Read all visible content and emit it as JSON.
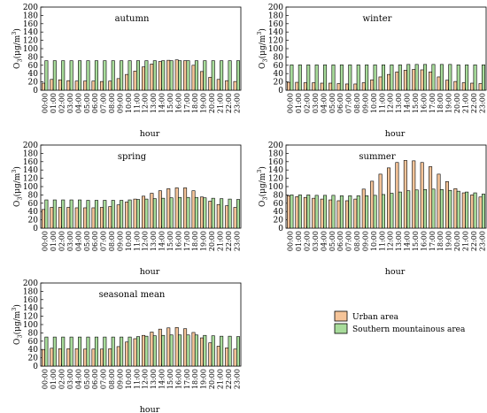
{
  "hours": [
    "00:00",
    "01:00",
    "02:00",
    "03:00",
    "04:00",
    "05:00",
    "06:00",
    "07:00",
    "08:00",
    "09:00",
    "10:00",
    "11:00",
    "12:00",
    "13:00",
    "14:00",
    "15:00",
    "16:00",
    "17:00",
    "18:00",
    "19:00",
    "20:00",
    "21:00",
    "22:00",
    "23:00"
  ],
  "ylabel_main": "O",
  "ylabel_sub": "3",
  "ylabel_unit_a": "(μg/m",
  "ylabel_unit_sup": "3",
  "ylabel_unit_b": ")",
  "xlabel": "hour",
  "legend": {
    "urban": "Urban area",
    "mountain": "Southern mountainous area"
  },
  "colors": {
    "urban": "#f5c499",
    "mountain": "#a8dc9b",
    "edge": "#000000"
  },
  "chart_data": [
    {
      "type": "bar",
      "title": "autumn",
      "categories": [
        "00:00",
        "01:00",
        "02:00",
        "03:00",
        "04:00",
        "05:00",
        "06:00",
        "07:00",
        "08:00",
        "09:00",
        "10:00",
        "11:00",
        "12:00",
        "13:00",
        "14:00",
        "15:00",
        "16:00",
        "17:00",
        "18:00",
        "19:00",
        "20:00",
        "21:00",
        "22:00",
        "23:00"
      ],
      "ylim": [
        0,
        200
      ],
      "yticks": [
        0,
        20,
        40,
        60,
        80,
        100,
        120,
        140,
        160,
        180,
        200
      ],
      "series": [
        {
          "name": "Urban area",
          "values": [
            17,
            26,
            25,
            23,
            22,
            22,
            22,
            21,
            22,
            28,
            38,
            46,
            56,
            63,
            69,
            72,
            73,
            71,
            60,
            45,
            31,
            26,
            23,
            21
          ]
        },
        {
          "name": "Southern mountainous area",
          "values": [
            71,
            71,
            71,
            71,
            71,
            71,
            71,
            71,
            71,
            71,
            71,
            71,
            71,
            71,
            71,
            71,
            71,
            71,
            71,
            71,
            71,
            71,
            71,
            71
          ]
        }
      ]
    },
    {
      "type": "bar",
      "title": "winter",
      "categories": [
        "00:00",
        "01:00",
        "02:00",
        "03:00",
        "04:00",
        "05:00",
        "06:00",
        "07:00",
        "08:00",
        "09:00",
        "10:00",
        "11:00",
        "12:00",
        "13:00",
        "14:00",
        "15:00",
        "16:00",
        "17:00",
        "18:00",
        "19:00",
        "20:00",
        "21:00",
        "22:00",
        "23:00"
      ],
      "ylim": [
        0,
        200
      ],
      "yticks": [
        0,
        20,
        40,
        60,
        80,
        100,
        120,
        140,
        160,
        180,
        200
      ],
      "series": [
        {
          "name": "Urban area",
          "values": [
            19,
            19,
            18,
            18,
            17,
            17,
            16,
            15,
            15,
            18,
            25,
            32,
            38,
            44,
            48,
            50,
            49,
            44,
            32,
            24,
            21,
            18,
            17,
            16
          ]
        },
        {
          "name": "Southern mountainous area",
          "values": [
            61,
            61,
            61,
            61,
            61,
            61,
            61,
            61,
            61,
            61,
            61,
            61,
            61,
            61,
            62,
            62,
            62,
            62,
            62,
            62,
            61,
            61,
            61,
            61
          ]
        }
      ]
    },
    {
      "type": "bar",
      "title": "spring",
      "categories": [
        "00:00",
        "01:00",
        "02:00",
        "03:00",
        "04:00",
        "05:00",
        "06:00",
        "07:00",
        "08:00",
        "09:00",
        "10:00",
        "11:00",
        "12:00",
        "13:00",
        "14:00",
        "15:00",
        "16:00",
        "17:00",
        "18:00",
        "19:00",
        "20:00",
        "21:00",
        "22:00",
        "23:00"
      ],
      "ylim": [
        0,
        200
      ],
      "yticks": [
        0,
        20,
        40,
        60,
        80,
        100,
        120,
        140,
        160,
        180,
        200
      ],
      "series": [
        {
          "name": "Urban area",
          "values": [
            45,
            50,
            50,
            50,
            49,
            49,
            49,
            50,
            52,
            56,
            63,
            70,
            77,
            84,
            90,
            95,
            97,
            97,
            90,
            75,
            65,
            57,
            54,
            50
          ]
        },
        {
          "name": "Southern mountainous area",
          "values": [
            68,
            68,
            68,
            68,
            68,
            67,
            67,
            67,
            67,
            67,
            68,
            69,
            70,
            71,
            72,
            73,
            74,
            74,
            74,
            73,
            72,
            71,
            70,
            69
          ]
        }
      ]
    },
    {
      "type": "bar",
      "title": "summer",
      "categories": [
        "00:00",
        "01:00",
        "02:00",
        "03:00",
        "04:00",
        "05:00",
        "06:00",
        "07:00",
        "08:00",
        "09:00",
        "10:00",
        "11:00",
        "12:00",
        "13:00",
        "14:00",
        "15:00",
        "16:00",
        "17:00",
        "18:00",
        "19:00",
        "20:00",
        "21:00",
        "22:00",
        "23:00"
      ],
      "ylim": [
        0,
        200
      ],
      "yticks": [
        0,
        20,
        40,
        60,
        80,
        100,
        120,
        140,
        160,
        180,
        200
      ],
      "series": [
        {
          "name": "Urban area",
          "values": [
            78,
            76,
            74,
            72,
            70,
            68,
            66,
            66,
            70,
            94,
            113,
            130,
            145,
            158,
            163,
            162,
            158,
            148,
            130,
            112,
            95,
            85,
            80,
            75
          ]
        },
        {
          "name": "Southern mountainous area",
          "values": [
            80,
            80,
            80,
            79,
            79,
            79,
            78,
            78,
            78,
            78,
            79,
            81,
            84,
            87,
            90,
            92,
            93,
            94,
            93,
            91,
            89,
            87,
            85,
            82
          ]
        }
      ]
    },
    {
      "type": "bar",
      "title": "seasonal mean",
      "categories": [
        "00:00",
        "01:00",
        "02:00",
        "03:00",
        "04:00",
        "05:00",
        "06:00",
        "07:00",
        "08:00",
        "09:00",
        "10:00",
        "11:00",
        "12:00",
        "13:00",
        "14:00",
        "15:00",
        "16:00",
        "17:00",
        "18:00",
        "19:00",
        "20:00",
        "21:00",
        "22:00",
        "23:00"
      ],
      "ylim": [
        0,
        200
      ],
      "yticks": [
        0,
        20,
        40,
        60,
        80,
        100,
        120,
        140,
        160,
        180,
        200
      ],
      "series": [
        {
          "name": "Urban area",
          "values": [
            40,
            43,
            42,
            42,
            42,
            41,
            41,
            41,
            42,
            47,
            58,
            66,
            74,
            82,
            89,
            92,
            93,
            90,
            81,
            68,
            56,
            48,
            44,
            41
          ]
        },
        {
          "name": "Southern mountainous area",
          "values": [
            70,
            70,
            70,
            70,
            70,
            70,
            70,
            70,
            70,
            70,
            70,
            71,
            72,
            73,
            74,
            75,
            75,
            75,
            75,
            74,
            73,
            72,
            72,
            71
          ]
        }
      ]
    }
  ]
}
